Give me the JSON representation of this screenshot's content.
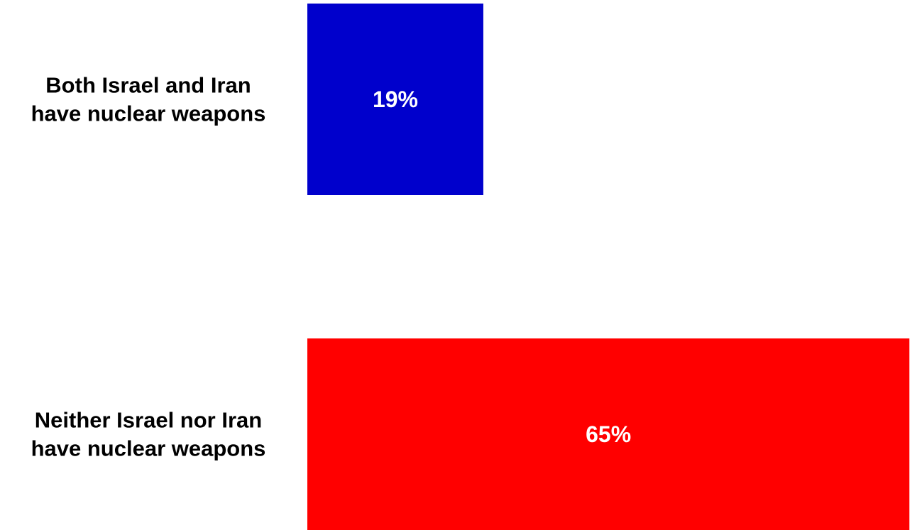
{
  "chart_data": {
    "type": "bar",
    "orientation": "horizontal",
    "categories": [
      "Both Israel and Iran have nuclear weapons",
      "Neither Israel nor Iran have nuclear weapons"
    ],
    "category_lines": [
      [
        "Both Israel and Iran",
        "have nuclear weapons"
      ],
      [
        "Neither Israel nor Iran",
        "have nuclear weapons"
      ]
    ],
    "values": [
      19,
      65
    ],
    "data_labels": [
      "19%",
      "65%"
    ],
    "colors": [
      "#0000CC",
      "#FF0000"
    ],
    "xlim": [
      0,
      85
    ],
    "title": "",
    "xlabel": "",
    "ylabel": "",
    "grid": false,
    "legend": "none"
  }
}
